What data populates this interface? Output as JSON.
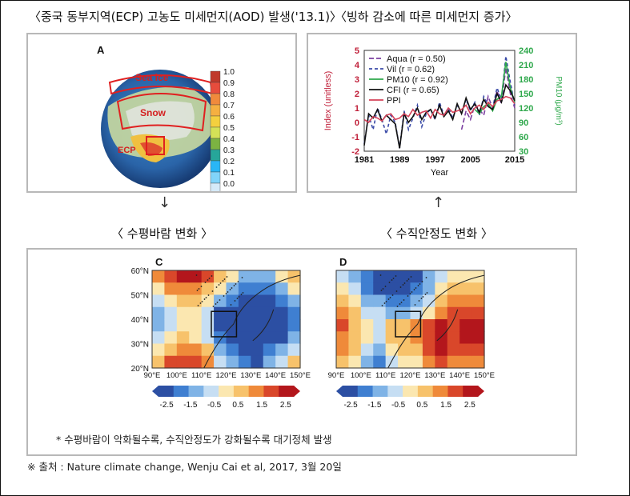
{
  "headers": {
    "aod": "〈중국 동부지역(ECP) 고농도 미세먼지(AOD) 발생('13.1)〉",
    "ice": "〈빙하 감소에 따른 미세먼지 증가〉",
    "wind": "〈 수평바람 변화 〉",
    "stability": "〈 수직안정도 변화 〉"
  },
  "arrows": {
    "down": "↓",
    "up": "↑"
  },
  "panel_a": {
    "letter": "A",
    "labels": {
      "sea_ice": "Sea ice",
      "snow": "Snow",
      "ecp": "ECP"
    },
    "colorbar_ticks": [
      "1.0",
      "0.9",
      "0.8",
      "0.7",
      "0.6",
      "0.5",
      "0.4",
      "0.3",
      "0.2",
      "0.1",
      "0.0"
    ],
    "colors": [
      "#c0392b",
      "#e74c3c",
      "#f08a3c",
      "#f5b041",
      "#f4d03f",
      "#d4e157",
      "#7cb342",
      "#26a69a",
      "#29b6f6",
      "#81d4fa",
      "#d6eaf8"
    ]
  },
  "chart_data": [
    {
      "type": "line",
      "xlabel": "Year",
      "ylabel": "Index (unitless)",
      "y2label": "PM10 (μg/m³)",
      "xticks": [
        "1981",
        "1989",
        "1997",
        "2005",
        "2015"
      ],
      "ylim": [
        -2,
        5
      ],
      "yticks": [
        "-2",
        "-1",
        "0",
        "1",
        "2",
        "3",
        "4",
        "5"
      ],
      "y2ticks": [
        "30",
        "60",
        "90",
        "120",
        "150",
        "180",
        "210",
        "240"
      ],
      "x": [
        1981,
        1982,
        1983,
        1984,
        1985,
        1986,
        1987,
        1988,
        1989,
        1990,
        1991,
        1992,
        1993,
        1994,
        1995,
        1996,
        1997,
        1998,
        1999,
        2000,
        2001,
        2002,
        2003,
        2004,
        2005,
        2006,
        2007,
        2008,
        2009,
        2010,
        2011,
        2012,
        2013,
        2014,
        2015
      ],
      "series": [
        {
          "name": "Aqua (r = 0.50)",
          "color": "#7b3fa0",
          "dash": "6,3",
          "values": [
            null,
            null,
            null,
            null,
            null,
            null,
            null,
            null,
            null,
            null,
            null,
            null,
            null,
            null,
            null,
            null,
            null,
            null,
            null,
            null,
            null,
            null,
            -0.5,
            0.8,
            0.2,
            1.2,
            0.9,
            0.5,
            1.8,
            1.0,
            2.2,
            1.3,
            3.8,
            2.0,
            1.0
          ]
        },
        {
          "name": "Vil (r = 0.62)",
          "color": "#3b4ba8",
          "dash": "4,3",
          "values": [
            -1.5,
            0.5,
            -0.5,
            1.0,
            0.2,
            -0.8,
            0.5,
            0.0,
            -1.8,
            0.8,
            -0.5,
            0.3,
            1.2,
            -0.3,
            0.6,
            0.9,
            0.2,
            1.4,
            0.5,
            1.0,
            0.3,
            1.2,
            0.6,
            1.6,
            0.8,
            1.4,
            0.5,
            1.8,
            1.2,
            1.0,
            2.4,
            1.6,
            4.6,
            2.8,
            1.2
          ]
        },
        {
          "name": "PM10 (r = 0.92)",
          "color": "#2ea84b",
          "dash": "",
          "values": [
            null,
            null,
            null,
            null,
            null,
            null,
            null,
            null,
            null,
            null,
            null,
            null,
            null,
            null,
            null,
            null,
            null,
            null,
            null,
            null,
            null,
            null,
            null,
            null,
            null,
            0.9,
            0.6,
            1.1,
            1.3,
            0.8,
            1.6,
            1.8,
            4.2,
            2.4,
            1.4
          ]
        },
        {
          "name": "CFI (r = 0.65)",
          "color": "#111111",
          "dash": "",
          "values": [
            -1.6,
            0.6,
            0.3,
            0.9,
            0.1,
            0.5,
            0.2,
            -0.1,
            -1.8,
            0.6,
            0.0,
            0.4,
            1.0,
            0.2,
            0.7,
            0.9,
            0.3,
            1.2,
            0.4,
            0.8,
            0.2,
            1.3,
            0.6,
            1.7,
            0.9,
            1.3,
            0.7,
            1.6,
            1.1,
            0.9,
            2.0,
            1.4,
            2.6,
            2.2,
            1.5
          ]
        },
        {
          "name": "PPI",
          "color": "#d4435a",
          "dash": "",
          "values": [
            0.2,
            0.0,
            0.4,
            0.3,
            0.1,
            0.5,
            0.6,
            0.2,
            0.3,
            0.6,
            0.4,
            0.9,
            0.5,
            0.7,
            0.8,
            0.3,
            0.9,
            0.6,
            0.5,
            1.0,
            0.7,
            0.8,
            0.9,
            1.2,
            0.6,
            1.0,
            1.2,
            0.9,
            1.4,
            1.1,
            1.5,
            1.6,
            1.8,
            1.7,
            1.3
          ]
        }
      ],
      "legend": "top-left"
    }
  ],
  "map_panels": {
    "c_letter": "C",
    "d_letter": "D",
    "lat_labels": [
      "60°N",
      "50°N",
      "40°N",
      "30°N",
      "20°N"
    ],
    "lon_labels": [
      "90°E",
      "100°E",
      "110°E",
      "120°E",
      "130°E",
      "140°E",
      "150°E"
    ],
    "colorbar_ticks": [
      "-2.5",
      "-1.5",
      "-0.5",
      "0.5",
      "1.5",
      "2.5"
    ],
    "colors": [
      "#2c4fa3",
      "#3f7fd1",
      "#7fb3e6",
      "#c6def3",
      "#fbe7b0",
      "#f7c26b",
      "#ef8a3a",
      "#d9472a",
      "#b3161c"
    ]
  },
  "note": "* 수평바람이 악화될수록, 수직안정도가 강화될수록 대기정체 발생",
  "source": "※ 출처 : Nature climate change, Wenju Cai et al, 2017, 3월 20일"
}
